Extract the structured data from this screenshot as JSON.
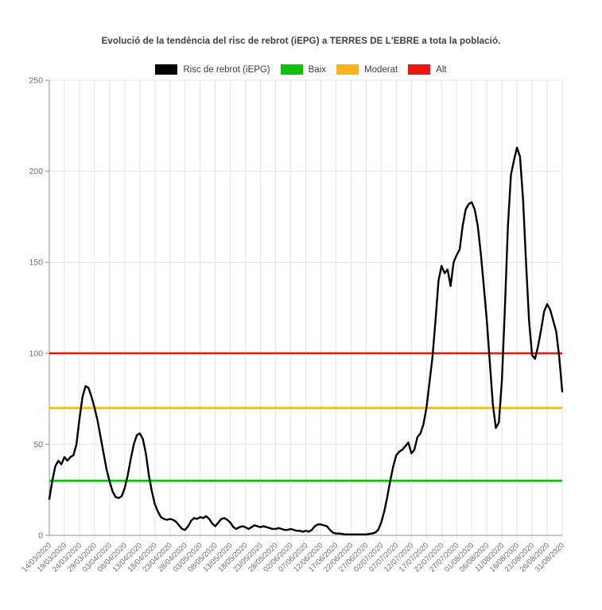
{
  "title": "Evolució de la tendència del risc de rebrot (iEPG) a TERRES DE L'EBRE a tota la població.",
  "legend": [
    {
      "label": "Risc de rebrot (iEPG)",
      "color": "#000000"
    },
    {
      "label": "Baix",
      "color": "#0bc10b"
    },
    {
      "label": "Moderat",
      "color": "#fcb514"
    },
    {
      "label": "Alt",
      "color": "#f31414"
    }
  ],
  "chart_data": {
    "type": "line",
    "title": "Evolució de la tendència del risc de rebrot (iEPG) a TERRES DE L'EBRE a tota la població.",
    "xlabel": "",
    "ylabel": "",
    "ylim": [
      0,
      250
    ],
    "y_ticks": [
      0,
      50,
      100,
      150,
      200,
      250
    ],
    "grid": true,
    "legend_position": "top",
    "x_start_date": "14/03/2020",
    "x_end_date": "31/08/2020",
    "x_tick_every_days": 5,
    "x_tick_labels": [
      "14/03/2020",
      "19/03/2020",
      "24/03/2020",
      "29/03/2020",
      "03/04/2020",
      "08/04/2020",
      "13/04/2020",
      "18/04/2020",
      "23/04/2020",
      "28/04/2020",
      "03/05/2020",
      "08/05/2020",
      "13/05/2020",
      "18/05/2020",
      "23/05/2020",
      "28/05/2020",
      "02/06/2020",
      "07/06/2020",
      "12/06/2020",
      "17/06/2020",
      "22/06/2020",
      "27/06/2020",
      "02/07/2020",
      "07/07/2020",
      "12/07/2020",
      "17/07/2020",
      "22/07/2020",
      "27/07/2020",
      "01/08/2020",
      "06/08/2020",
      "11/08/2020",
      "16/08/2020",
      "21/08/2020",
      "26/08/2020",
      "31/08/2020"
    ],
    "series": [
      {
        "name": "Risc de rebrot (iEPG)",
        "color": "#000000",
        "values": [
          20,
          30,
          38,
          41,
          39,
          43,
          41,
          43,
          44,
          50,
          64,
          76,
          82,
          81,
          76,
          70,
          63,
          54,
          45,
          36,
          29.5,
          24,
          21,
          20.5,
          21.5,
          26,
          33,
          42,
          50,
          55,
          56,
          53,
          45,
          33,
          24,
          17,
          13,
          10,
          9,
          8.5,
          9,
          8.5,
          7.5,
          5.5,
          3.5,
          3,
          5,
          8,
          9.5,
          9,
          10,
          9.5,
          10.5,
          9,
          6.5,
          5,
          7,
          9,
          9.5,
          8.5,
          7,
          4.5,
          3.5,
          4.5,
          5,
          4.5,
          3.5,
          4.5,
          5.5,
          5,
          4.5,
          5,
          4.5,
          4,
          3.5,
          3.5,
          4,
          3.5,
          3,
          3,
          3.5,
          3,
          2.5,
          2.5,
          2,
          2.5,
          2,
          3,
          5,
          6,
          6,
          5.5,
          5,
          3,
          1.5,
          1,
          1,
          0.8,
          0.5,
          0.5,
          0.5,
          0.5,
          0.5,
          0.5,
          0.5,
          0.5,
          0.8,
          1,
          1.5,
          3,
          7,
          13,
          21,
          30,
          38,
          44,
          46,
          47,
          49,
          51,
          45,
          47,
          54,
          56,
          61,
          70,
          84,
          98,
          118,
          140,
          148,
          144,
          146,
          137,
          150,
          154,
          157,
          170,
          179,
          182,
          183,
          179,
          170,
          155,
          137,
          118,
          95,
          72,
          59,
          62,
          85,
          125,
          170,
          198,
          206,
          213,
          208,
          185,
          150,
          118,
          99,
          97,
          104,
          113,
          123,
          127,
          124,
          118,
          112,
          98,
          79
        ]
      }
    ],
    "reference_lines": [
      {
        "name": "Baix",
        "value": 30,
        "color": "#0bc10b"
      },
      {
        "name": "Moderat",
        "value": 70,
        "color": "#fcb514"
      },
      {
        "name": "Alt",
        "value": 100,
        "color": "#f31414"
      }
    ],
    "colors": {
      "grid": "#e4e4e4",
      "axis": "#909090",
      "tick_label": "#6e6e6e"
    }
  }
}
